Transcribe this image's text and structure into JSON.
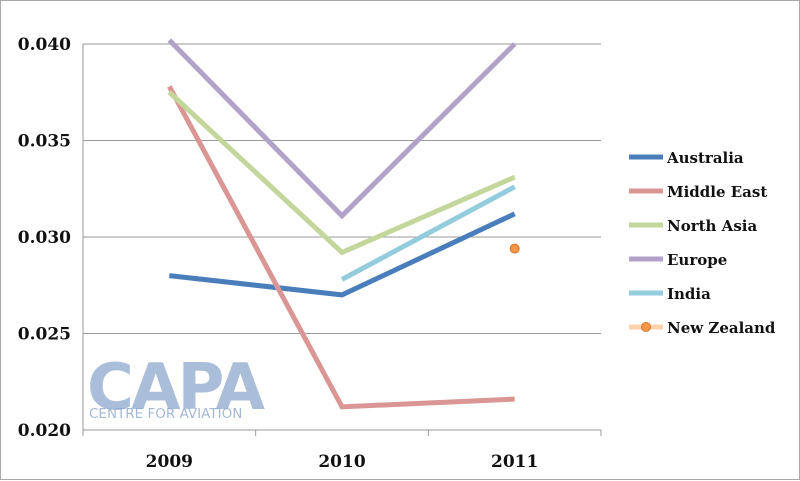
{
  "chart_data": {
    "type": "line",
    "title": "",
    "xlabel": "",
    "ylabel": "",
    "categories": [
      "2009",
      "2010",
      "2011"
    ],
    "ylim": [
      0.02,
      0.04
    ],
    "yticks": [
      "0.020",
      "0.025",
      "0.030",
      "0.035",
      "0.040"
    ],
    "grid": true,
    "legend_position": "right",
    "series": [
      {
        "name": "Australia",
        "color": "#4a7ebb",
        "values": [
          0.028,
          0.027,
          0.0312
        ]
      },
      {
        "name": "Middle East",
        "color": "#d99694",
        "values": [
          0.0378,
          0.0212,
          0.0216
        ]
      },
      {
        "name": "North Asia",
        "color": "#c3d69b",
        "values": [
          0.0375,
          0.0292,
          0.0331
        ]
      },
      {
        "name": "Europe",
        "color": "#b3a2c7",
        "values": [
          0.0402,
          0.0311,
          0.04
        ]
      },
      {
        "name": "India",
        "color": "#93cddd",
        "values": [
          null,
          0.0278,
          0.0326
        ]
      },
      {
        "name": "New Zealand",
        "color": "#f79646",
        "values": [
          null,
          null,
          0.0294
        ]
      }
    ]
  },
  "logo": {
    "name": "CAPA",
    "tagline": "CENTRE FOR AVIATION",
    "color": "#8fa8cc"
  }
}
